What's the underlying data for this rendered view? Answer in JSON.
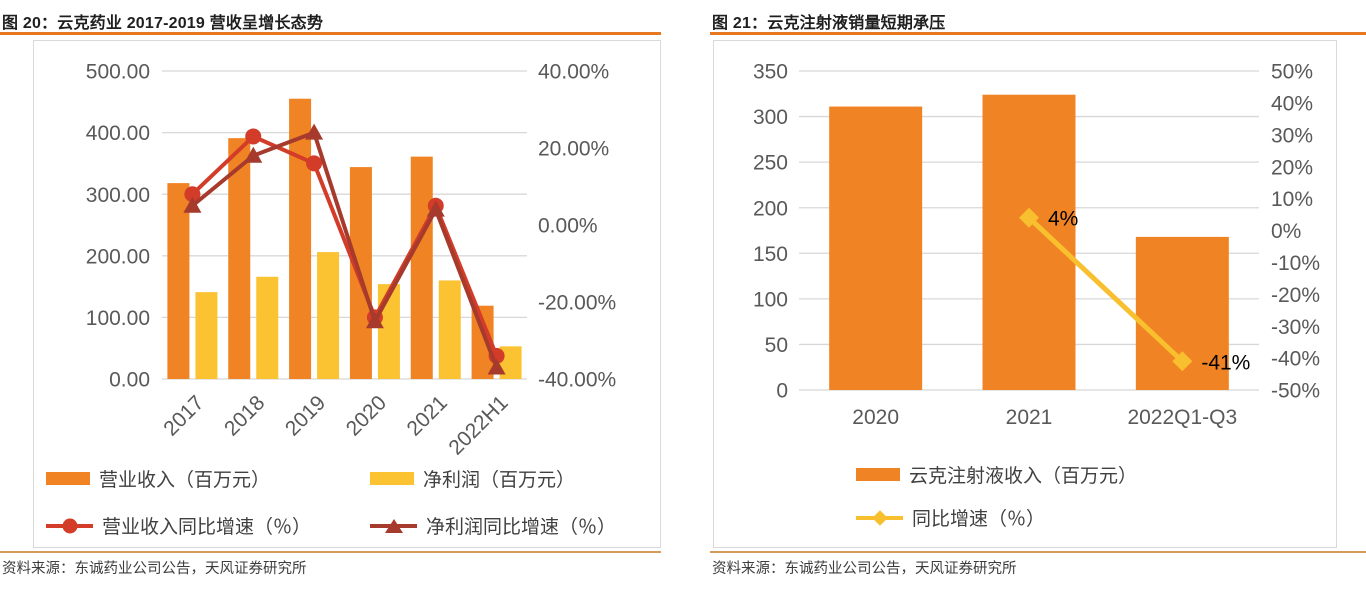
{
  "colors": {
    "bar_orange": "#f08323",
    "bar_yellow": "#fbc231",
    "line_red": "#d23c28",
    "line_dark_red": "#a63a2d",
    "line_yellow": "#f8bf2f",
    "title_rule": "#e87722",
    "source_rule": "#d49b5b",
    "axis_text": "#595959",
    "gridline": "#d8d8d8",
    "title_text": "#1f1f1f",
    "point_label": "#000000"
  },
  "figures": [
    {
      "title": "图 20：云克药业 2017-2019 营收呈增长态势",
      "source": "资料来源：东诚药业公司公告，天风证券研究所",
      "chart_data": {
        "type": "combo-bar-line",
        "categories": [
          "2017",
          "2018",
          "2019",
          "2020",
          "2021",
          "2022H1"
        ],
        "bar_series": [
          {
            "name": "营业收入（百万元）",
            "axis": "left",
            "color": "#f08323",
            "values": [
              318,
              391,
              455,
              344,
              361,
              119
            ]
          },
          {
            "name": "净利润（百万元）",
            "axis": "left",
            "color": "#fbc231",
            "values": [
              141,
              166,
              206,
              154,
              160,
              53
            ]
          }
        ],
        "line_series": [
          {
            "name": "营业收入同比增速（％）",
            "axis": "right",
            "color": "#d23c28",
            "marker": "circle",
            "values": [
              8,
              23,
              16,
              -24,
              5,
              -34
            ]
          },
          {
            "name": "净利润同比增速（％）",
            "axis": "right",
            "color": "#a63a2d",
            "marker": "triangle",
            "values": [
              5,
              18,
              24,
              -25,
              4,
              -37
            ]
          }
        ],
        "left_axis": {
          "min": 0,
          "max": 500,
          "step": 100,
          "labels": [
            "500.00",
            "400.00",
            "300.00",
            "200.00",
            "100.00",
            "0.00"
          ]
        },
        "right_axis": {
          "min": -40,
          "max": 40,
          "step": 20,
          "labels": [
            "40.00%",
            "20.00%",
            "0.00%",
            "-20.00%",
            "-40.00%"
          ]
        },
        "grid": true,
        "legend_position": "bottom",
        "x_labels_rotated": true
      }
    },
    {
      "title": "图 21：云克注射液销量短期承压",
      "source": "资料来源：东诚药业公司公告，天风证券研究所",
      "chart_data": {
        "type": "combo-bar-line",
        "categories": [
          "2020",
          "2021",
          "2022Q1-Q3"
        ],
        "bar_series": [
          {
            "name": "云克注射液收入（百万元）",
            "axis": "left",
            "color": "#f08323",
            "values": [
              311,
              324,
              168
            ]
          }
        ],
        "line_series": [
          {
            "name": "同比增速（％）",
            "axis": "right",
            "color": "#f8bf2f",
            "marker": "diamond",
            "values": [
              null,
              4,
              -41
            ],
            "point_labels": [
              "",
              "4%",
              "-41%"
            ]
          }
        ],
        "left_axis": {
          "min": 0,
          "max": 350,
          "step": 50,
          "labels": [
            "350",
            "300",
            "250",
            "200",
            "150",
            "100",
            "50",
            "0"
          ]
        },
        "right_axis": {
          "min": -50,
          "max": 50,
          "step": 10,
          "labels": [
            "50%",
            "40%",
            "30%",
            "20%",
            "10%",
            "0%",
            "-10%",
            "-20%",
            "-30%",
            "-40%",
            "-50%"
          ]
        },
        "grid": true,
        "legend_position": "bottom",
        "x_labels_rotated": false
      }
    }
  ]
}
